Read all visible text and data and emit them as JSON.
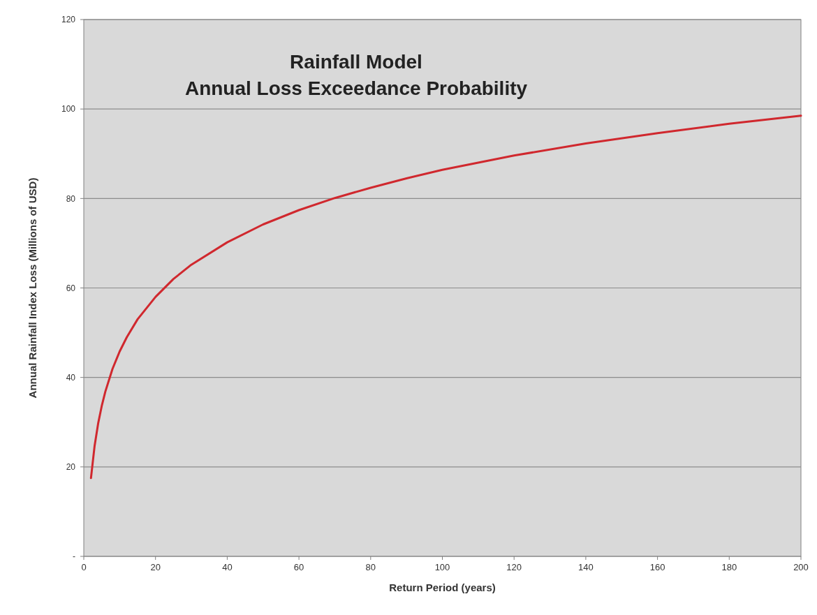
{
  "chart_data": {
    "type": "line",
    "title": "Rainfall Model\nAnnual Loss Exceedance Probability",
    "xlabel": "Return Period (years)",
    "ylabel": "Annual Rainfall Index Loss (Millions of USD)",
    "x": [
      2,
      3,
      4,
      5,
      6,
      8,
      10,
      12,
      15,
      20,
      25,
      30,
      40,
      50,
      60,
      70,
      80,
      90,
      100,
      120,
      140,
      160,
      180,
      200
    ],
    "series": [
      {
        "color": "#d0282e",
        "values": [
          17.5,
          24.6,
          29.7,
          33.6,
          36.8,
          41.9,
          45.8,
          49.0,
          53.0,
          58.0,
          62.0,
          65.2,
          70.2,
          74.2,
          77.4,
          80.1,
          82.4,
          84.5,
          86.4,
          89.6,
          92.3,
          94.6,
          96.7,
          98.5
        ]
      }
    ],
    "xlim": [
      0,
      200
    ],
    "xticks": [
      0,
      20,
      40,
      60,
      80,
      100,
      120,
      140,
      160,
      180,
      200
    ],
    "ylim": [
      0,
      120
    ],
    "yticks": [
      {
        "value": 0,
        "label": "-"
      },
      20,
      40,
      60,
      80,
      100,
      120
    ],
    "grid": "y",
    "marker": "none",
    "line_style": "solid"
  }
}
